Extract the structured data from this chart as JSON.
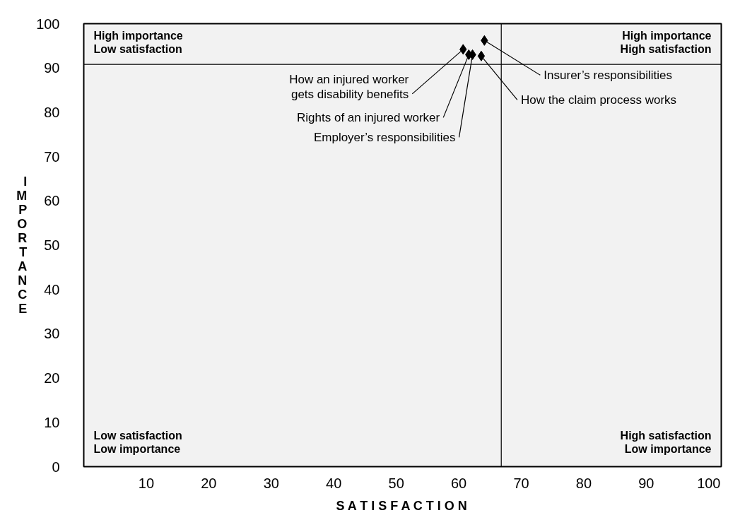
{
  "chart_data": {
    "type": "scatter",
    "xlabel": "S A T I S F A C T I O N",
    "ylabel": "IMPORTANCE",
    "x": [
      60.7,
      61.6,
      62.2,
      63.6,
      64.1
    ],
    "values": [
      94.2,
      93.0,
      93.0,
      92.7,
      96.2
    ],
    "color": "#000000",
    "marker": "diamond",
    "xlim": [
      0,
      102
    ],
    "ylim": [
      0,
      100
    ],
    "xticks": [
      10,
      20,
      30,
      40,
      50,
      60,
      70,
      80,
      90,
      100
    ],
    "yticks": [
      0,
      10,
      20,
      30,
      40,
      50,
      60,
      70,
      80,
      90,
      100
    ],
    "grid": false,
    "ref_lines": [
      {
        "axis": "x",
        "value": 66.8,
        "color": "#000000"
      },
      {
        "axis": "y",
        "value": 90.8,
        "color": "#000000"
      }
    ],
    "annotations": [
      "High importance\nLow satisfaction",
      "High importance\nHigh satisfaction",
      "Low satisfaction\nLow importance",
      "High satisfaction\nLow importance",
      {
        "text": "How an injured worker\ngets disability benefits",
        "x": 60.7,
        "y": 94.2
      },
      {
        "text": "Rights of an injured worker",
        "x": 61.6,
        "y": 93.0
      },
      {
        "text": "Employer’s responsibilities",
        "x": 62.2,
        "y": 93.0
      },
      {
        "text": "How the claim process works",
        "x": 63.6,
        "y": 92.7
      },
      {
        "text": "Insurer’s responsibilities",
        "x": 64.1,
        "y": 96.2
      }
    ]
  }
}
